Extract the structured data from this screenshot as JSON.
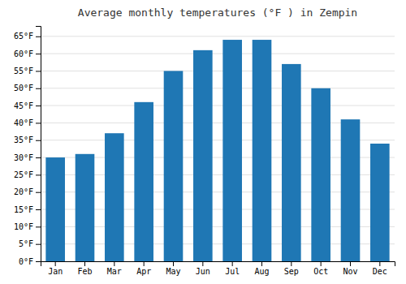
{
  "chart_data": {
    "type": "bar",
    "title": "Average monthly temperatures (°F ) in Zempin",
    "categories": [
      "Jan",
      "Feb",
      "Mar",
      "Apr",
      "May",
      "Jun",
      "Jul",
      "Aug",
      "Sep",
      "Oct",
      "Nov",
      "Dec"
    ],
    "values": [
      30,
      31,
      37,
      46,
      55,
      61,
      64,
      64,
      57,
      50,
      41,
      34
    ],
    "ylim": [
      0,
      68
    ],
    "yticks": [
      {
        "value": 0,
        "label": "0°F"
      },
      {
        "value": 5,
        "label": "5°F"
      },
      {
        "value": 10,
        "label": "10°F"
      },
      {
        "value": 15,
        "label": "15°F"
      },
      {
        "value": 20,
        "label": "20°F"
      },
      {
        "value": 25,
        "label": "25°F"
      },
      {
        "value": 30,
        "label": "30°F"
      },
      {
        "value": 35,
        "label": "35°F"
      },
      {
        "value": 40,
        "label": "40°F"
      },
      {
        "value": 45,
        "label": "45°F"
      },
      {
        "value": 50,
        "label": "50°F"
      },
      {
        "value": 55,
        "label": "55°F"
      },
      {
        "value": 60,
        "label": "60°F"
      },
      {
        "value": 65,
        "label": "65°F"
      }
    ],
    "grid": true
  }
}
